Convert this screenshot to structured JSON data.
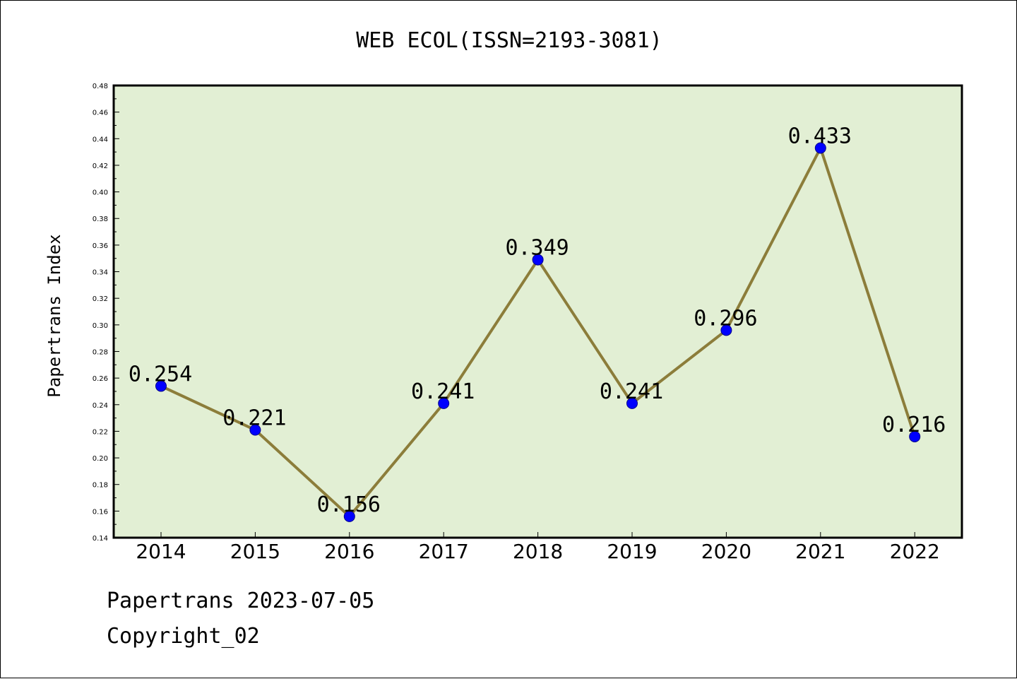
{
  "chart_data": {
    "type": "line",
    "title": "WEB ECOL(ISSN=2193-3081)",
    "xlabel": "",
    "ylabel": "Papertrans Index",
    "categories": [
      "2014",
      "2015",
      "2016",
      "2017",
      "2018",
      "2019",
      "2020",
      "2021",
      "2022"
    ],
    "series": [
      {
        "values": [
          0.254,
          0.221,
          0.156,
          0.241,
          0.349,
          0.241,
          0.296,
          0.433,
          0.216
        ],
        "data_labels": [
          "0.254",
          "0.221",
          "0.156",
          "0.241",
          "0.349",
          "0.241",
          "0.296",
          "0.433",
          "0.216"
        ]
      }
    ],
    "ylim": [
      0.14,
      0.48
    ],
    "yticks": [
      "0.14",
      "0.16",
      "0.18",
      "0.20",
      "0.22",
      "0.24",
      "0.26",
      "0.28",
      "0.30",
      "0.32",
      "0.34",
      "0.36",
      "0.38",
      "0.40",
      "0.42",
      "0.44",
      "0.46",
      "0.48"
    ],
    "grid": false,
    "colors": {
      "plot_background": "#e2efd4",
      "line": "#8c7d3a",
      "marker": "#0000ff"
    }
  },
  "footer": {
    "line1": "Papertrans 2023-07-05",
    "line2": "Copyright_02"
  }
}
